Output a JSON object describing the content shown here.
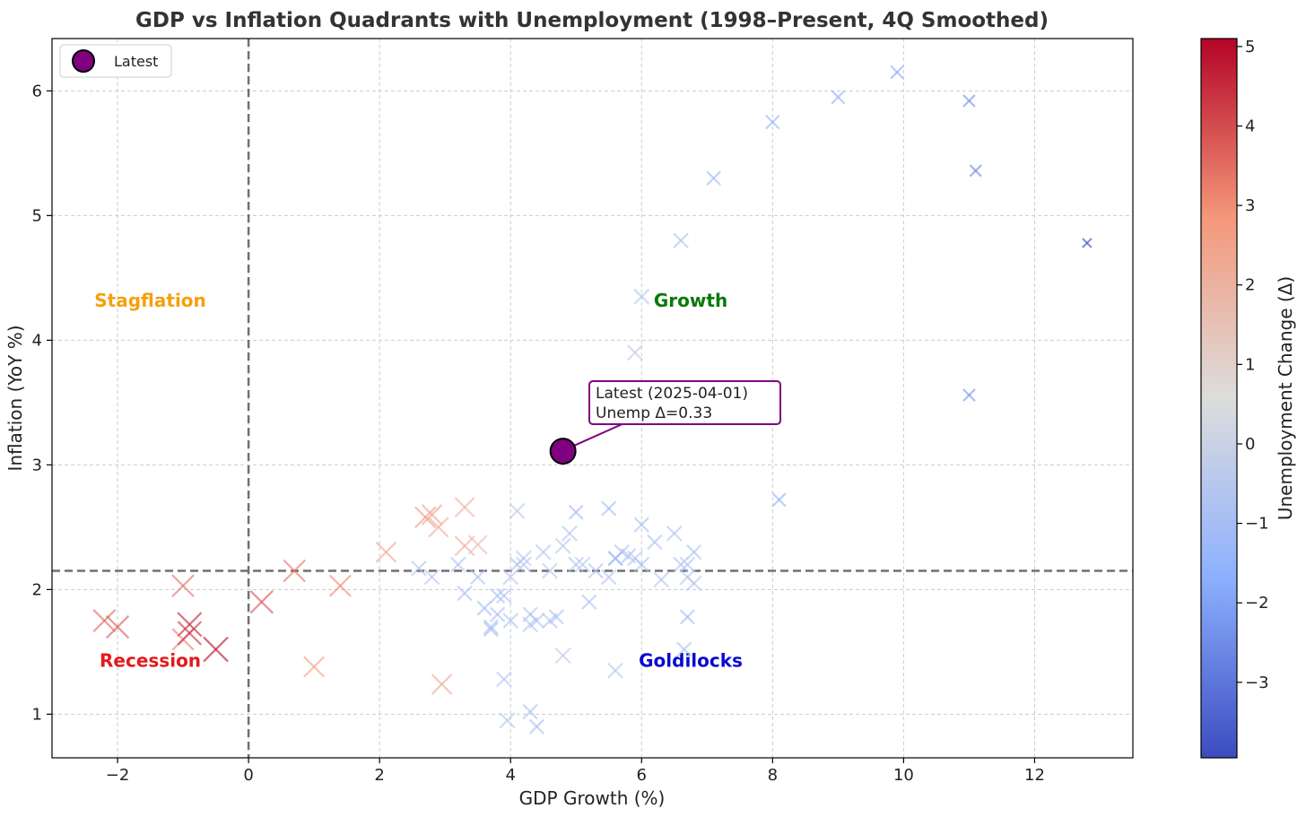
{
  "chart_data": {
    "type": "scatter",
    "title": "GDP vs Inflation Quadrants with Unemployment (1998–Present, 4Q Smoothed)",
    "xlabel": "GDP Growth (%)",
    "ylabel": "Inflation (YoY %)",
    "xlim": [
      -3,
      13.5
    ],
    "ylim": [
      0.65,
      6.42
    ],
    "x_ticks": [
      -2,
      0,
      2,
      4,
      6,
      8,
      10,
      12
    ],
    "y_ticks": [
      1,
      2,
      3,
      4,
      5,
      6
    ],
    "x_tick_labels": [
      "−2",
      "0",
      "2",
      "4",
      "6",
      "8",
      "10",
      "12"
    ],
    "y_tick_labels": [
      "1",
      "2",
      "3",
      "4",
      "5",
      "6"
    ],
    "grid": true,
    "reference_lines": {
      "x": 0,
      "y": 2.15
    },
    "quadrant_labels": [
      {
        "text": "Stagflation",
        "x": -1.5,
        "y": 4.27,
        "color": "#f5a00f"
      },
      {
        "text": "Growth",
        "x": 6.75,
        "y": 4.27,
        "color": "#0a7a0a"
      },
      {
        "text": "Recession",
        "x": -1.5,
        "y": 1.38,
        "color": "#e31a1c"
      },
      {
        "text": "Goldilocks",
        "x": 6.75,
        "y": 1.38,
        "color": "#0a0ad0"
      }
    ],
    "colorbar": {
      "label": "Unemployment Change (Δ)",
      "min": -3.95,
      "max": 5.1,
      "ticks": [
        -3,
        -2,
        -1,
        0,
        1,
        2,
        3,
        4,
        5
      ],
      "tick_labels": [
        "−3",
        "−2",
        "−1",
        "0",
        "1",
        "2",
        "3",
        "4",
        "5"
      ],
      "colormap": "coolwarm"
    },
    "legend": {
      "placement": "top-left",
      "entries": [
        {
          "label": "Latest",
          "color": "#800080"
        }
      ]
    },
    "latest": {
      "x": 4.8,
      "y": 3.11,
      "color": "#800080",
      "annotation": [
        "Latest (2025-04-01)",
        "Unemp Δ=0.33"
      ]
    },
    "points": [
      [
        -2.2,
        1.75,
        3.6
      ],
      [
        -2.0,
        1.7,
        3.8
      ],
      [
        -1.0,
        2.03,
        3.5
      ],
      [
        -0.9,
        1.72,
        4.7
      ],
      [
        -1.0,
        1.6,
        3.2
      ],
      [
        -0.9,
        1.65,
        4.4
      ],
      [
        -0.5,
        1.52,
        5.0
      ],
      [
        0.2,
        1.9,
        3.9
      ],
      [
        0.7,
        2.15,
        3.4
      ],
      [
        1.4,
        2.03,
        3.1
      ],
      [
        1.0,
        1.38,
        2.6
      ],
      [
        2.1,
        2.3,
        2.4
      ],
      [
        2.7,
        2.58,
        2.9
      ],
      [
        2.8,
        2.6,
        2.5
      ],
      [
        2.9,
        2.5,
        2.2
      ],
      [
        2.95,
        1.24,
        2.3
      ],
      [
        3.3,
        2.66,
        2.0
      ],
      [
        3.3,
        2.35,
        2.1
      ],
      [
        3.5,
        2.36,
        1.6
      ],
      [
        2.6,
        2.17,
        -0.7
      ],
      [
        2.8,
        2.1,
        -0.6
      ],
      [
        3.2,
        2.2,
        -0.8
      ],
      [
        3.3,
        1.97,
        -0.9
      ],
      [
        3.6,
        1.85,
        -1.1
      ],
      [
        3.7,
        1.7,
        -1.0
      ],
      [
        3.8,
        1.8,
        -0.9
      ],
      [
        3.9,
        1.95,
        -0.7
      ],
      [
        4.0,
        2.1,
        -0.6
      ],
      [
        4.1,
        2.2,
        -0.8
      ],
      [
        4.2,
        2.25,
        -0.5
      ],
      [
        4.3,
        1.8,
        -0.9
      ],
      [
        4.4,
        1.75,
        -0.7
      ],
      [
        4.5,
        2.3,
        -0.6
      ],
      [
        4.6,
        1.75,
        -0.8
      ],
      [
        4.7,
        1.78,
        -1.0
      ],
      [
        4.8,
        2.35,
        -0.5
      ],
      [
        4.9,
        2.45,
        -0.6
      ],
      [
        5.0,
        2.62,
        -1.2
      ],
      [
        5.0,
        2.2,
        -0.7
      ],
      [
        5.2,
        1.9,
        -0.9
      ],
      [
        5.3,
        2.15,
        -0.8
      ],
      [
        5.5,
        2.65,
        -1.1
      ],
      [
        5.5,
        2.1,
        -0.7
      ],
      [
        5.6,
        2.25,
        -1.0
      ],
      [
        5.7,
        2.3,
        -0.8
      ],
      [
        5.9,
        2.25,
        -0.7
      ],
      [
        6.0,
        2.52,
        -0.9
      ],
      [
        6.0,
        2.2,
        -0.8
      ],
      [
        6.2,
        2.38,
        -0.9
      ],
      [
        6.3,
        2.08,
        -0.6
      ],
      [
        6.5,
        2.45,
        -0.7
      ],
      [
        6.6,
        2.2,
        -0.8
      ],
      [
        6.7,
        2.1,
        -0.5
      ],
      [
        6.7,
        1.78,
        -1.1
      ],
      [
        6.8,
        2.3,
        -0.9
      ],
      [
        6.8,
        2.05,
        -0.6
      ],
      [
        6.65,
        1.52,
        -0.9
      ],
      [
        4.8,
        1.47,
        -0.4
      ],
      [
        5.6,
        1.35,
        -0.6
      ],
      [
        3.9,
        1.28,
        -0.7
      ],
      [
        4.3,
        1.02,
        -0.9
      ],
      [
        4.4,
        0.9,
        -1.0
      ],
      [
        3.95,
        0.95,
        -0.5
      ],
      [
        4.1,
        2.63,
        -0.4
      ],
      [
        5.1,
        2.2,
        -0.5
      ],
      [
        5.9,
        3.9,
        -0.4
      ],
      [
        6.0,
        4.35,
        -0.6
      ],
      [
        6.6,
        4.8,
        -0.8
      ],
      [
        7.1,
        5.3,
        -1.2
      ],
      [
        8.0,
        5.75,
        -1.4
      ],
      [
        8.1,
        2.72,
        -1.6
      ],
      [
        9.0,
        5.95,
        -1.6
      ],
      [
        9.9,
        6.15,
        -1.8
      ],
      [
        11.0,
        5.92,
        -2.4
      ],
      [
        11.1,
        5.36,
        -2.6
      ],
      [
        12.8,
        4.78,
        -3.9
      ],
      [
        11.0,
        3.56,
        -2.3
      ],
      [
        3.8,
        1.95,
        -1.0
      ],
      [
        4.0,
        1.75,
        -0.9
      ],
      [
        4.2,
        2.2,
        -0.6
      ],
      [
        3.5,
        2.1,
        -0.9
      ],
      [
        5.6,
        2.25,
        -1.1
      ],
      [
        6.7,
        2.2,
        -0.7
      ],
      [
        4.3,
        1.72,
        -0.8
      ],
      [
        3.7,
        1.68,
        -1.0
      ],
      [
        4.6,
        2.15,
        -0.5
      ],
      [
        5.8,
        2.27,
        -0.9
      ]
    ]
  }
}
